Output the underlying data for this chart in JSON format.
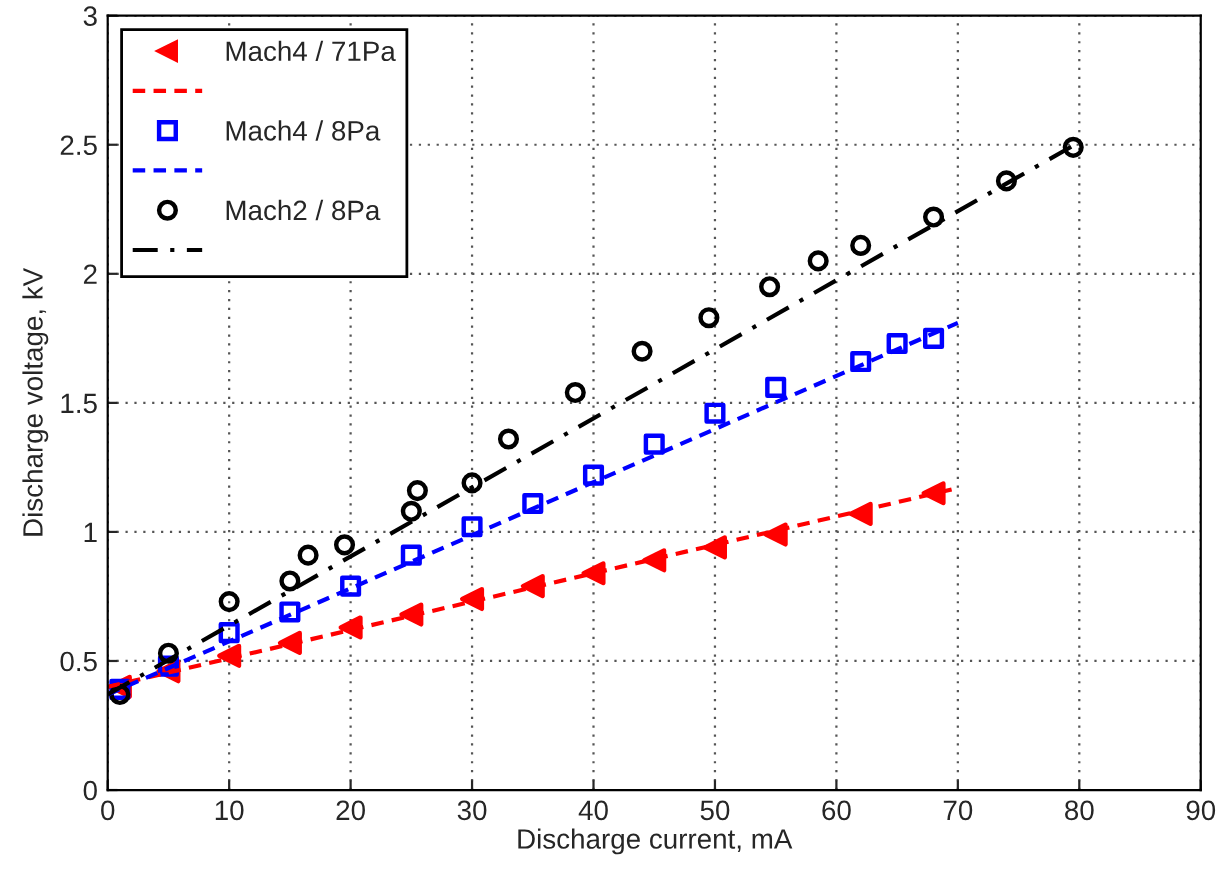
{
  "chart_data": {
    "type": "scatter",
    "xlabel": "Discharge current, mA",
    "ylabel": "Discharge voltage, kV",
    "xlim": [
      0,
      90
    ],
    "ylim": [
      0,
      3
    ],
    "xticks": [
      0,
      10,
      20,
      30,
      40,
      50,
      60,
      70,
      80,
      90
    ],
    "yticks": [
      0,
      0.5,
      1,
      1.5,
      2,
      2.5,
      3
    ],
    "grid": true,
    "legend": "top left",
    "series": [
      {
        "name": "Mach4 / 71Pa",
        "color": "#ff0000",
        "marker": "triangle",
        "x": [
          1,
          5,
          10,
          15,
          20,
          25,
          30,
          35,
          40,
          45,
          50,
          55,
          62,
          68
        ],
        "values": [
          0.4,
          0.46,
          0.52,
          0.57,
          0.63,
          0.68,
          0.74,
          0.79,
          0.84,
          0.89,
          0.94,
          0.99,
          1.07,
          1.15
        ]
      },
      {
        "type": "line",
        "color": "#ff0000",
        "line_style": "dashed",
        "marker": "none",
        "x": [
          0,
          70
        ],
        "values": [
          0.4,
          1.17
        ]
      },
      {
        "name": "Mach4 / 8Pa",
        "color": "#0000ff",
        "marker": "square",
        "x": [
          1,
          5,
          10,
          15,
          20,
          25,
          30,
          35,
          40,
          45,
          50,
          55,
          62,
          65,
          68
        ],
        "values": [
          0.39,
          0.48,
          0.61,
          0.69,
          0.79,
          0.91,
          1.02,
          1.11,
          1.22,
          1.34,
          1.46,
          1.56,
          1.66,
          1.73,
          1.75
        ]
      },
      {
        "type": "line",
        "color": "#0000ff",
        "line_style": "dashed",
        "marker": "none",
        "x": [
          0,
          70
        ],
        "values": [
          0.37,
          1.81
        ]
      },
      {
        "name": "Mach2 / 8Pa",
        "color": "#000000",
        "marker": "circle",
        "x": [
          1,
          5,
          10,
          15,
          16.5,
          19.5,
          25,
          25.5,
          30,
          33,
          38.5,
          44,
          49.5,
          54.5,
          58.5,
          62,
          68,
          74,
          79.5
        ],
        "values": [
          0.37,
          0.53,
          0.73,
          0.81,
          0.91,
          0.95,
          1.08,
          1.16,
          1.19,
          1.36,
          1.54,
          1.7,
          1.83,
          1.95,
          2.05,
          2.11,
          2.22,
          2.36,
          2.49
        ]
      },
      {
        "type": "line",
        "color": "#000000",
        "line_style": "dashdot",
        "marker": "none",
        "x": [
          0,
          80
        ],
        "values": [
          0.37,
          2.51
        ]
      }
    ]
  }
}
